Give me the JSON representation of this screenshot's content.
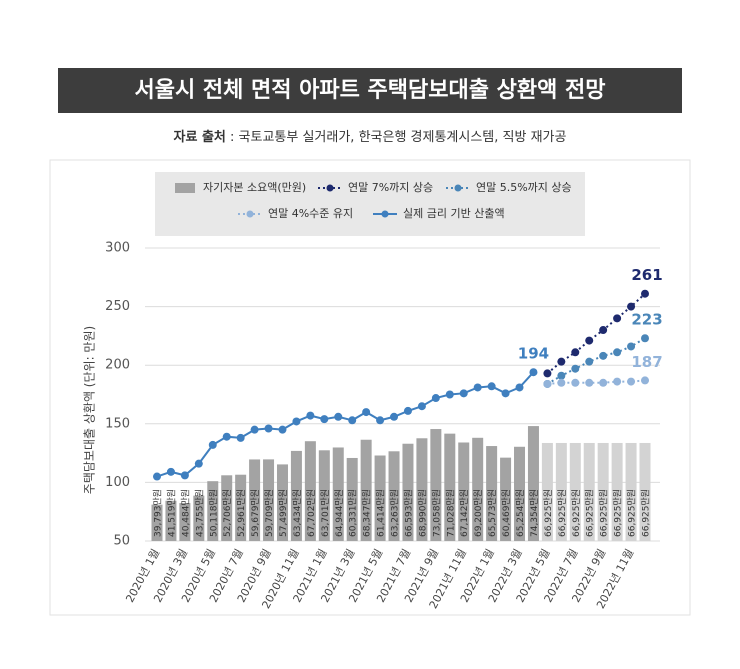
{
  "chart_data": {
    "type": "bar-line",
    "title": "서울시 전체 면적 아파트 주택담보대출 상환액 전망",
    "source_label": "자료 출처",
    "source": " : 국토교통부 실거래가, 한국은행 경제통계시스템, 직방 재가공",
    "y_label": "주택담보대출 상환액 (단위: 만원)",
    "categories": [
      "2020년 1월",
      null,
      "2020년 3월",
      null,
      "2020년 5월",
      null,
      "2020년 7월",
      null,
      "2020년 9월",
      null,
      "2020년 11월",
      null,
      "2021년 1월",
      null,
      "2021년 3월",
      null,
      "2021년 5월",
      null,
      "2021년 7월",
      null,
      "2021년 9월",
      null,
      "2021년 11월",
      null,
      "2022년 1월",
      null,
      "2022년 3월",
      null,
      "2022년 5월",
      null,
      "2022년 7월",
      null,
      "2022년 9월",
      null,
      "2022년 11월",
      null
    ],
    "ylim": [
      50,
      300
    ],
    "yticks": [
      50,
      100,
      150,
      200,
      250,
      300
    ],
    "y2lim": [
      23800,
      152700
    ],
    "grid": true,
    "series": [
      {
        "name": "자기자본 소요액(만원)",
        "type": "bar",
        "axis": "y2",
        "color": "#a3a3a3",
        "colors": [
          "#a3a3a3",
          "#a3a3a3",
          "#a3a3a3",
          "#a3a3a3",
          "#a3a3a3",
          "#a3a3a3",
          "#a3a3a3",
          "#a3a3a3",
          "#a3a3a3",
          "#a3a3a3",
          "#a3a3a3",
          "#a3a3a3",
          "#a3a3a3",
          "#a3a3a3",
          "#a3a3a3",
          "#a3a3a3",
          "#a3a3a3",
          "#a3a3a3",
          "#a3a3a3",
          "#a3a3a3",
          "#a3a3a3",
          "#a3a3a3",
          "#a3a3a3",
          "#a3a3a3",
          "#a3a3a3",
          "#a3a3a3",
          "#a3a3a3",
          "#a3a3a3",
          "#d3d3d3",
          "#d3d3d3",
          "#d3d3d3",
          "#d3d3d3",
          "#d3d3d3",
          "#d3d3d3",
          "#d3d3d3",
          "#d3d3d3"
        ],
        "values": [
          39793,
          41519,
          40484,
          43755,
          50118,
          52706,
          52961,
          59679,
          59709,
          57499,
          63434,
          67702,
          63701,
          64944,
          60331,
          68347,
          61414,
          63263,
          66593,
          68990,
          73058,
          71028,
          67142,
          69200,
          65573,
          60469,
          65254,
          74354,
          66925,
          66925,
          66925,
          66925,
          66925,
          66925,
          66925,
          66925
        ],
        "value_labels": [
          "39,793만원",
          "41,519만원",
          "40,484만원",
          "43,755만원",
          "50,118만원",
          "52,706만원",
          "52,961만원",
          "59,679만원",
          "59,709만원",
          "57,499만원",
          "63,434만원",
          "67,702만원",
          "63,701만원",
          "64,944만원",
          "60,331만원",
          "68,347만원",
          "61,414만원",
          "63,263만원",
          "66,593만원",
          "68,990만원",
          "73,058만원",
          "71,028만원",
          "67,142만원",
          "69,200만원",
          "65,573만원",
          "60,469만원",
          "65,254만원",
          "74,354만원",
          "66,925만원",
          "66,925만원",
          "66,925만원",
          "66,925만원",
          "66,925만원",
          "66,925만원",
          "66,925만원",
          "66,925만원"
        ]
      },
      {
        "name": "연말 7%까지 상승",
        "type": "line",
        "style": "dotted",
        "color": "#1e2a6e",
        "values": [
          null,
          null,
          null,
          null,
          null,
          null,
          null,
          null,
          null,
          null,
          null,
          null,
          null,
          null,
          null,
          null,
          null,
          null,
          null,
          null,
          null,
          null,
          null,
          null,
          null,
          null,
          null,
          null,
          193,
          203,
          211,
          221,
          230,
          240,
          250,
          261
        ]
      },
      {
        "name": "연말 5.5%까지 상승",
        "type": "line",
        "style": "dotted",
        "color": "#4a86b8",
        "values": [
          null,
          null,
          null,
          null,
          null,
          null,
          null,
          null,
          null,
          null,
          null,
          null,
          null,
          null,
          null,
          null,
          null,
          null,
          null,
          null,
          null,
          null,
          null,
          null,
          null,
          null,
          null,
          null,
          184,
          191,
          197,
          203,
          208,
          211,
          216,
          223
        ]
      },
      {
        "name": "연말 4%수준 유지",
        "type": "line",
        "style": "dotted",
        "color": "#92b3da",
        "values": [
          null,
          null,
          null,
          null,
          null,
          null,
          null,
          null,
          null,
          null,
          null,
          null,
          null,
          null,
          null,
          null,
          null,
          null,
          null,
          null,
          null,
          null,
          null,
          null,
          null,
          null,
          null,
          null,
          184,
          185,
          185,
          185,
          185,
          186,
          186,
          187
        ]
      },
      {
        "name": "실제 금리 기반 산출액",
        "type": "line",
        "style": "solid",
        "color": "#3f7fbf",
        "values": [
          105,
          109,
          106,
          116,
          132,
          139,
          138,
          145,
          146,
          145,
          152,
          157,
          154,
          156,
          153,
          160,
          153,
          156,
          161,
          165,
          172,
          175,
          176,
          181,
          182,
          176,
          181,
          194,
          null,
          null,
          null,
          null,
          null,
          null,
          null,
          null
        ]
      }
    ]
  }
}
